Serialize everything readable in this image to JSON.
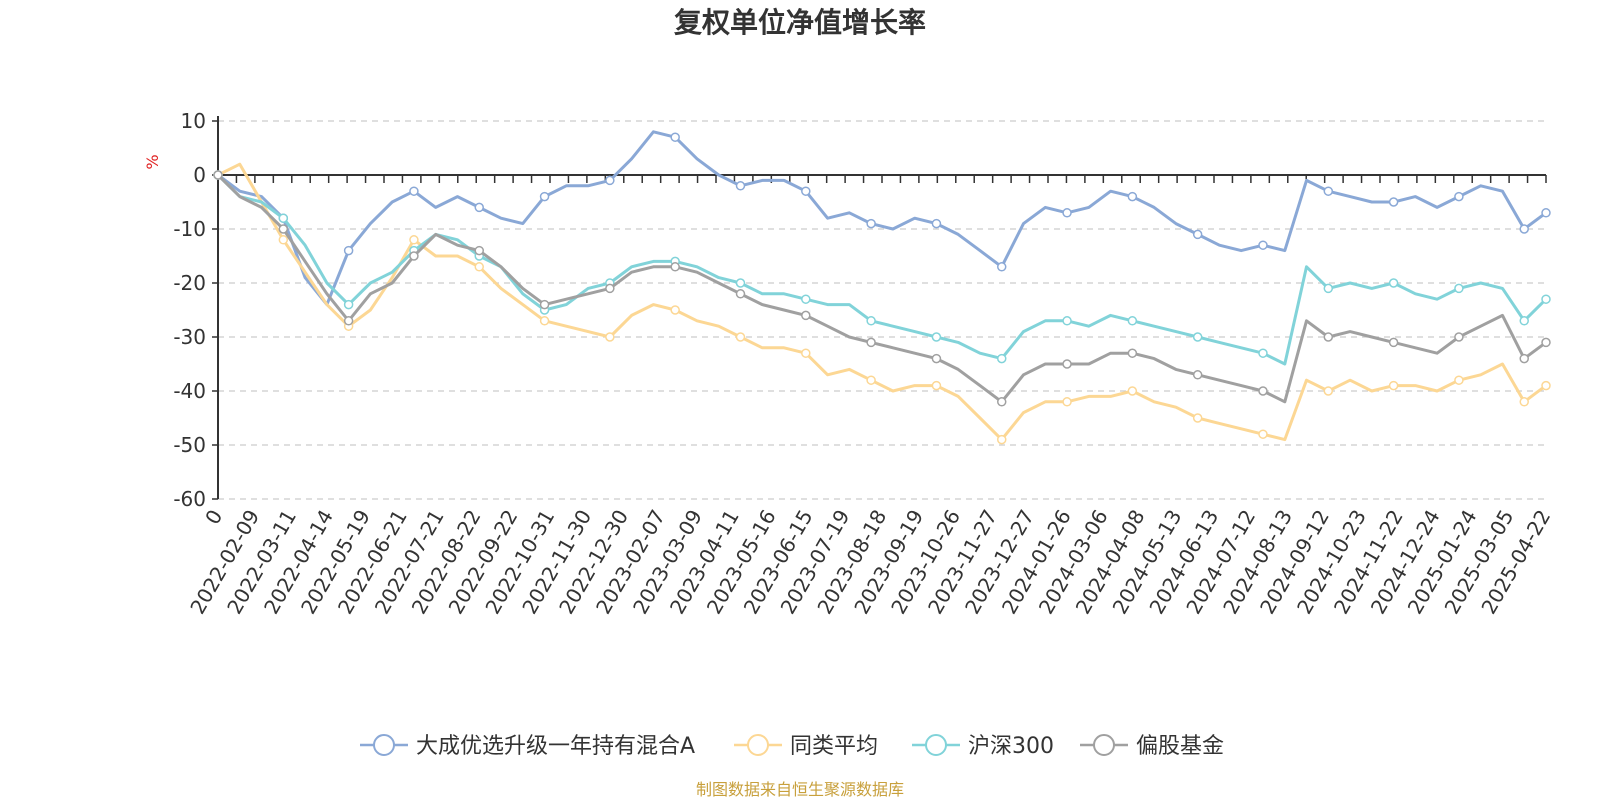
{
  "chart_data": {
    "type": "line",
    "title": "复权单位净值增长率",
    "ylabel": "%",
    "ylim": [
      -60,
      10
    ],
    "yticks": [
      10,
      0,
      -10,
      -20,
      -30,
      -40,
      -50,
      -60
    ],
    "x_origin_label": "0",
    "x_tick_labels": [
      "2022-02-09",
      "2022-03-11",
      "2022-04-14",
      "2022-05-19",
      "2022-06-21",
      "2022-07-21",
      "2022-08-22",
      "2022-09-22",
      "2022-10-31",
      "2022-11-30",
      "2022-12-30",
      "2023-02-07",
      "2023-03-09",
      "2023-04-11",
      "2023-05-16",
      "2023-06-15",
      "2023-07-19",
      "2023-08-18",
      "2023-09-19",
      "2023-10-26",
      "2023-11-27",
      "2023-12-27",
      "2024-01-26",
      "2024-03-06",
      "2024-04-08",
      "2024-05-13",
      "2024-06-13",
      "2024-07-12",
      "2024-08-13",
      "2024-09-12",
      "2024-10-23",
      "2024-11-22",
      "2024-12-24",
      "2025-01-24",
      "2025-03-05",
      "2025-04-22"
    ],
    "grid": "horizontal dashed",
    "legend_position": "bottom",
    "series": [
      {
        "name": "大成优选升级一年持有混合A",
        "color": "#8aa8d6",
        "values": [
          0,
          -3,
          -4,
          -8,
          -19,
          -24,
          -14,
          -9,
          -5,
          -3,
          -6,
          -4,
          -6,
          -8,
          -9,
          -4,
          -2,
          -2,
          -1,
          3,
          8,
          7,
          3,
          0,
          -2,
          -1,
          -1,
          -3,
          -8,
          -7,
          -9,
          -10,
          -8,
          -9,
          -11,
          -14,
          -17,
          -9,
          -6,
          -7,
          -6,
          -3,
          -4,
          -6,
          -9,
          -11,
          -13,
          -14,
          -13,
          -14,
          -1,
          -3,
          -4,
          -5,
          -5,
          -4,
          -6,
          -4,
          -2,
          -3,
          -10,
          -7
        ]
      },
      {
        "name": "同类平均",
        "color": "#fcd794",
        "values": [
          0,
          2,
          -5,
          -12,
          -18,
          -24,
          -28,
          -25,
          -19,
          -12,
          -15,
          -15,
          -17,
          -21,
          -24,
          -27,
          -28,
          -29,
          -30,
          -26,
          -24,
          -25,
          -27,
          -28,
          -30,
          -32,
          -32,
          -33,
          -37,
          -36,
          -38,
          -40,
          -39,
          -39,
          -41,
          -45,
          -49,
          -44,
          -42,
          -42,
          -41,
          -41,
          -40,
          -42,
          -43,
          -45,
          -46,
          -47,
          -48,
          -49,
          -38,
          -40,
          -38,
          -40,
          -39,
          -39,
          -40,
          -38,
          -37,
          -35,
          -42,
          -39
        ]
      },
      {
        "name": "沪深300",
        "color": "#81d3d9",
        "values": [
          0,
          -4,
          -5,
          -8,
          -13,
          -20,
          -24,
          -20,
          -18,
          -14,
          -11,
          -12,
          -15,
          -17,
          -22,
          -25,
          -24,
          -21,
          -20,
          -17,
          -16,
          -16,
          -17,
          -19,
          -20,
          -22,
          -22,
          -23,
          -24,
          -24,
          -27,
          -28,
          -29,
          -30,
          -31,
          -33,
          -34,
          -29,
          -27,
          -27,
          -28,
          -26,
          -27,
          -28,
          -29,
          -30,
          -31,
          -32,
          -33,
          -35,
          -17,
          -21,
          -20,
          -21,
          -20,
          -22,
          -23,
          -21,
          -20,
          -21,
          -27,
          -23
        ]
      },
      {
        "name": "偏股基金",
        "color": "#a0a0a0",
        "values": [
          0,
          -4,
          -6,
          -10,
          -16,
          -22,
          -27,
          -22,
          -20,
          -15,
          -11,
          -13,
          -14,
          -17,
          -21,
          -24,
          -23,
          -22,
          -21,
          -18,
          -17,
          -17,
          -18,
          -20,
          -22,
          -24,
          -25,
          -26,
          -28,
          -30,
          -31,
          -32,
          -33,
          -34,
          -36,
          -39,
          -42,
          -37,
          -35,
          -35,
          -35,
          -33,
          -33,
          -34,
          -36,
          -37,
          -38,
          -39,
          -40,
          -42,
          -27,
          -30,
          -29,
          -30,
          -31,
          -32,
          -33,
          -30,
          -28,
          -26,
          -34,
          -31
        ]
      }
    ]
  },
  "legend": [
    {
      "label": "大成优选升级一年持有混合A",
      "color": "#8aa8d6"
    },
    {
      "label": "同类平均",
      "color": "#fcd794"
    },
    {
      "label": "沪深300",
      "color": "#81d3d9"
    },
    {
      "label": "偏股基金",
      "color": "#a0a0a0"
    }
  ],
  "source": "制图数据来自恒生聚源数据库",
  "colors": {
    "axis": "#333333",
    "grid": "#cccccc",
    "ylabel": "#e02020",
    "source": "#c8a03c"
  }
}
